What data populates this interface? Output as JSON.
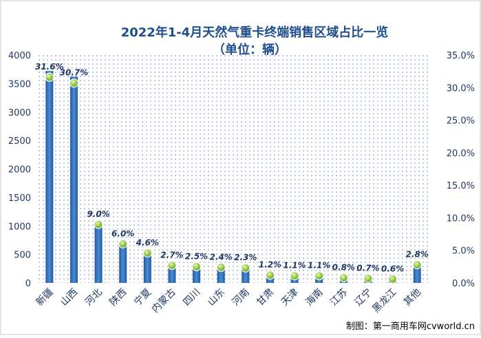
{
  "chart_data": {
    "type": "bar+line",
    "title": "2022年1-4月天然气重卡终端销售区域占比一览",
    "subtitle": "（单位：辆）",
    "categories": [
      "新疆",
      "山西",
      "河北",
      "陕西",
      "宁夏",
      "内蒙古",
      "四川",
      "山东",
      "河南",
      "甘肃",
      "天津",
      "海南",
      "江苏",
      "辽宁",
      "黑龙江",
      "其他"
    ],
    "series": [
      {
        "axis": "left",
        "kind": "bar",
        "color": "#2f6fb7",
        "values": [
          3720,
          3620,
          1050,
          700,
          540,
          310,
          290,
          280,
          270,
          140,
          130,
          130,
          95,
          85,
          70,
          330
        ]
      },
      {
        "axis": "right",
        "kind": "marker",
        "color": "#8cc63f",
        "values": [
          31.6,
          30.7,
          9.0,
          6.0,
          4.6,
          2.7,
          2.5,
          2.4,
          2.3,
          1.2,
          1.1,
          1.1,
          0.8,
          0.7,
          0.6,
          2.8
        ],
        "labels": [
          "31.6%",
          "30.7%",
          "9.0%",
          "6.0%",
          "4.6%",
          "2.7%",
          "2.5%",
          "2.4%",
          "2.3%",
          "1.2%",
          "1.1%",
          "1.1%",
          "0.8%",
          "0.7%",
          "0.6%",
          "2.8%"
        ]
      }
    ],
    "y_left": {
      "ylim": [
        0,
        4000
      ],
      "ticks": [
        "0",
        "500",
        "1000",
        "1500",
        "2000",
        "2500",
        "3000",
        "3500",
        "4000"
      ]
    },
    "y_right": {
      "ylim": [
        0,
        35
      ],
      "ticks": [
        "0.0%",
        "5.0%",
        "10.0%",
        "15.0%",
        "20.0%",
        "25.0%",
        "30.0%",
        "35.0%"
      ]
    },
    "grid": false,
    "plot_background": "dotted",
    "title_color": "#1f4e8c",
    "label_color": "#1f3864"
  },
  "watermark": "制图：第一商用车网cvworld.cn"
}
